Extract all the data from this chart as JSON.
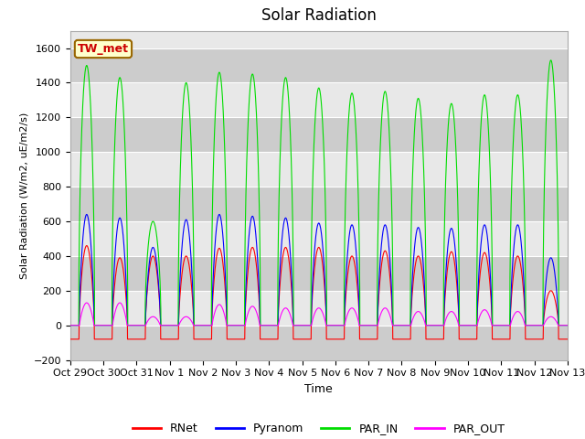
{
  "title": "Solar Radiation",
  "ylabel": "Solar Radiation (W/m2, uE/m2/s)",
  "xlabel": "Time",
  "ylim": [
    -200,
    1700
  ],
  "yticks": [
    -200,
    0,
    200,
    400,
    600,
    800,
    1000,
    1200,
    1400,
    1600
  ],
  "xtick_labels": [
    "Oct 29",
    "Oct 30",
    "Oct 31",
    "Nov 1",
    "Nov 2",
    "Nov 3",
    "Nov 4",
    "Nov 5",
    "Nov 6",
    "Nov 7",
    "Nov 8",
    "Nov 9",
    "Nov 10",
    "Nov 11",
    "Nov 12",
    "Nov 13"
  ],
  "station_label": "TW_met",
  "station_label_color": "#cc0000",
  "station_box_color": "#ffffcc",
  "station_box_edge": "#996600",
  "colors": {
    "RNet": "#ff0000",
    "Pyranom": "#0000ff",
    "PAR_IN": "#00dd00",
    "PAR_OUT": "#ff00ff"
  },
  "background_color": "#ffffff",
  "plot_bg_color": "#e8e8e8",
  "band_dark": "#cccccc",
  "band_light": "#e8e8e8",
  "n_days": 15,
  "peak_par_in": [
    1500,
    1430,
    600,
    1400,
    1460,
    1450,
    1430,
    1370,
    1340,
    1350,
    1310,
    1280,
    1330,
    1330,
    1530
  ],
  "peak_pyranom": [
    640,
    620,
    450,
    610,
    640,
    630,
    620,
    590,
    580,
    580,
    565,
    560,
    580,
    580,
    390
  ],
  "peak_rnet": [
    460,
    390,
    400,
    400,
    445,
    450,
    450,
    450,
    400,
    430,
    400,
    425,
    420,
    400,
    200
  ],
  "peak_par_out": [
    130,
    130,
    50,
    50,
    120,
    110,
    100,
    100,
    100,
    100,
    80,
    80,
    90,
    80,
    50
  ],
  "night_rnet": -80,
  "title_fontsize": 12,
  "tick_fontsize": 8,
  "ylabel_fontsize": 8,
  "xlabel_fontsize": 9
}
